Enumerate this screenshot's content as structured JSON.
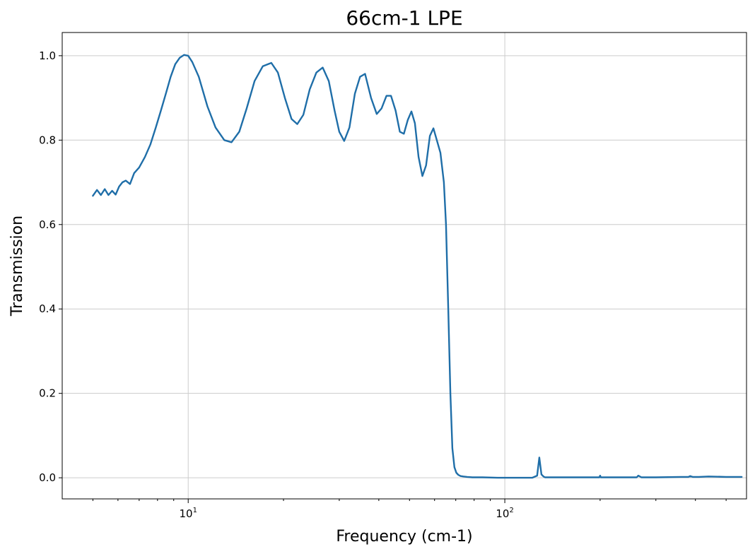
{
  "chart_data": {
    "type": "line",
    "title": "66cm-1 LPE",
    "xlabel": "Frequency (cm-1)",
    "ylabel": "Transmission",
    "x_scale": "log",
    "xlim": [
      4.0,
      580
    ],
    "ylim": [
      -0.05,
      1.055
    ],
    "grid": true,
    "x_ticks": [
      {
        "base": "10",
        "exp": "1",
        "value": 10
      },
      {
        "base": "10",
        "exp": "2",
        "value": 100
      }
    ],
    "y_ticks": [
      {
        "label": "0.0",
        "value": 0.0
      },
      {
        "label": "0.2",
        "value": 0.2
      },
      {
        "label": "0.4",
        "value": 0.4
      },
      {
        "label": "0.6",
        "value": 0.6
      },
      {
        "label": "0.8",
        "value": 0.8
      },
      {
        "label": "1.0",
        "value": 1.0
      }
    ],
    "colors": {
      "series": "#1f6ea8",
      "grid": "#cccccc",
      "axes": "#000000"
    },
    "series": [
      {
        "x": [
          5.0,
          5.15,
          5.3,
          5.45,
          5.6,
          5.75,
          5.9,
          6.05,
          6.2,
          6.35,
          6.55,
          6.75,
          7.0,
          7.3,
          7.6,
          7.9,
          8.2,
          8.5,
          8.8,
          9.1,
          9.4,
          9.7,
          10.0,
          10.3,
          10.8,
          11.5,
          12.2,
          13.0,
          13.7,
          14.5,
          15.3,
          16.2,
          17.2,
          18.3,
          19.2,
          20.2,
          21.2,
          22.1,
          23.1,
          24.2,
          25.4,
          26.6,
          27.8,
          29.0,
          30.0,
          31.1,
          32.3,
          33.6,
          34.9,
          36.2,
          37.8,
          39.4,
          40.8,
          42.3,
          43.7,
          45.2,
          46.6,
          48.0,
          49.4,
          50.7,
          52.0,
          53.4,
          54.9,
          56.4,
          58.0,
          59.5,
          61.0,
          62.6,
          64.2,
          65.2,
          66.3,
          67.3,
          68.3,
          69.3,
          70.3,
          71.3,
          72.5,
          74.0,
          76.0,
          79.0,
          85.0,
          95.0,
          110.0,
          122.0,
          126.5,
          128.5,
          130.5,
          132.5,
          134.0,
          137.0,
          150.0,
          170.0,
          190.0,
          199.0,
          200.0,
          201.0,
          230.0,
          255.0,
          261.0,
          264.0,
          270.0,
          300.0,
          360.0,
          380.0,
          385.0,
          392.0,
          410.0,
          440.0,
          500.0,
          560.0
        ],
        "y": [
          0.668,
          0.682,
          0.67,
          0.684,
          0.67,
          0.68,
          0.671,
          0.69,
          0.7,
          0.704,
          0.696,
          0.722,
          0.735,
          0.76,
          0.79,
          0.83,
          0.87,
          0.91,
          0.95,
          0.98,
          0.995,
          1.002,
          1.0,
          0.985,
          0.95,
          0.88,
          0.83,
          0.8,
          0.795,
          0.82,
          0.875,
          0.94,
          0.975,
          0.983,
          0.96,
          0.9,
          0.85,
          0.838,
          0.86,
          0.92,
          0.96,
          0.972,
          0.94,
          0.87,
          0.82,
          0.798,
          0.83,
          0.91,
          0.95,
          0.957,
          0.9,
          0.862,
          0.875,
          0.905,
          0.905,
          0.87,
          0.82,
          0.815,
          0.848,
          0.868,
          0.84,
          0.76,
          0.715,
          0.74,
          0.81,
          0.828,
          0.8,
          0.77,
          0.7,
          0.6,
          0.4,
          0.2,
          0.07,
          0.025,
          0.012,
          0.007,
          0.004,
          0.003,
          0.002,
          0.001,
          0.001,
          0.0,
          0.0,
          0.0,
          0.005,
          0.048,
          0.008,
          0.003,
          0.001,
          0.001,
          0.001,
          0.001,
          0.001,
          0.001,
          0.005,
          0.001,
          0.001,
          0.001,
          0.001,
          0.005,
          0.001,
          0.001,
          0.002,
          0.002,
          0.004,
          0.002,
          0.002,
          0.003,
          0.002,
          0.002
        ]
      }
    ]
  }
}
